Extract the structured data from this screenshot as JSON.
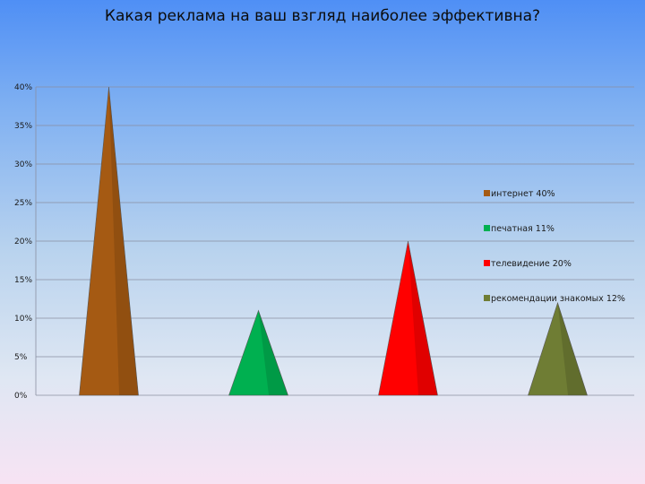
{
  "chart_data": {
    "type": "bar",
    "title": "Какая реклама на ваш взгляд  наиболее эффективна?",
    "xlabel": "",
    "ylabel": "",
    "categories": [
      "интернет",
      "печатная",
      "телевидение",
      "рекомендации знакомых"
    ],
    "values": [
      40,
      11,
      20,
      12
    ],
    "unit": "%",
    "ylim": [
      0,
      40
    ],
    "yticks": [
      "0%",
      "5%",
      "10%",
      "15%",
      "20%",
      "25%",
      "30%",
      "35%",
      "40%"
    ],
    "grid": true,
    "bar_shape": "cone",
    "legend_position": "right",
    "legend": [
      "интернет  40%",
      "печатная 11%",
      "телевидение 20%",
      "рекомендации знакомых 12%"
    ],
    "colors": [
      "#a55a13",
      "#00b050",
      "#ff0000",
      "#6f7d34"
    ]
  }
}
